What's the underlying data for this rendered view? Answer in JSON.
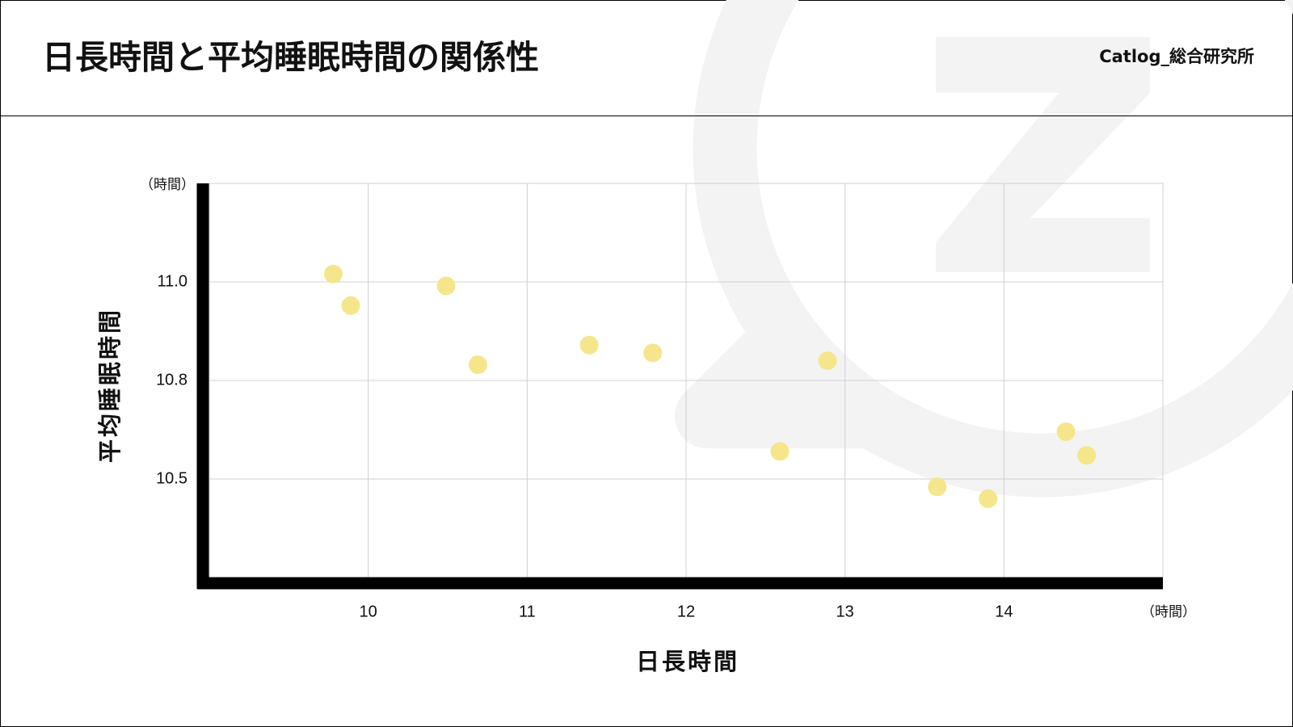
{
  "header": {
    "title": "日長時間と平均睡眠時間の関係性",
    "brand": "Catlog_総合研究所"
  },
  "chart_data": {
    "type": "scatter",
    "x_label": "日長時間",
    "y_label": "平均睡眠時間",
    "x_unit": "（時間）",
    "y_unit": "（時間）",
    "color": "#f5e68c",
    "x": [
      9.78,
      9.89,
      10.49,
      10.69,
      11.39,
      11.79,
      12.89,
      12.59,
      13.58,
      13.9,
      14.39,
      14.52
    ],
    "y": [
      11.02,
      10.94,
      10.99,
      10.79,
      10.84,
      10.82,
      10.8,
      10.57,
      10.48,
      10.45,
      10.62,
      10.56
    ],
    "xlim": [
      9,
      15
    ],
    "ylim": [
      10.25,
      11.25
    ],
    "xticks": [
      10,
      11,
      12,
      13,
      14
    ],
    "yticks": [
      {
        "value": 10.5,
        "label": "10.5"
      },
      {
        "value": 10.75,
        "label": "10.8"
      },
      {
        "value": 11,
        "label": "11.0"
      }
    ],
    "grid": true
  }
}
